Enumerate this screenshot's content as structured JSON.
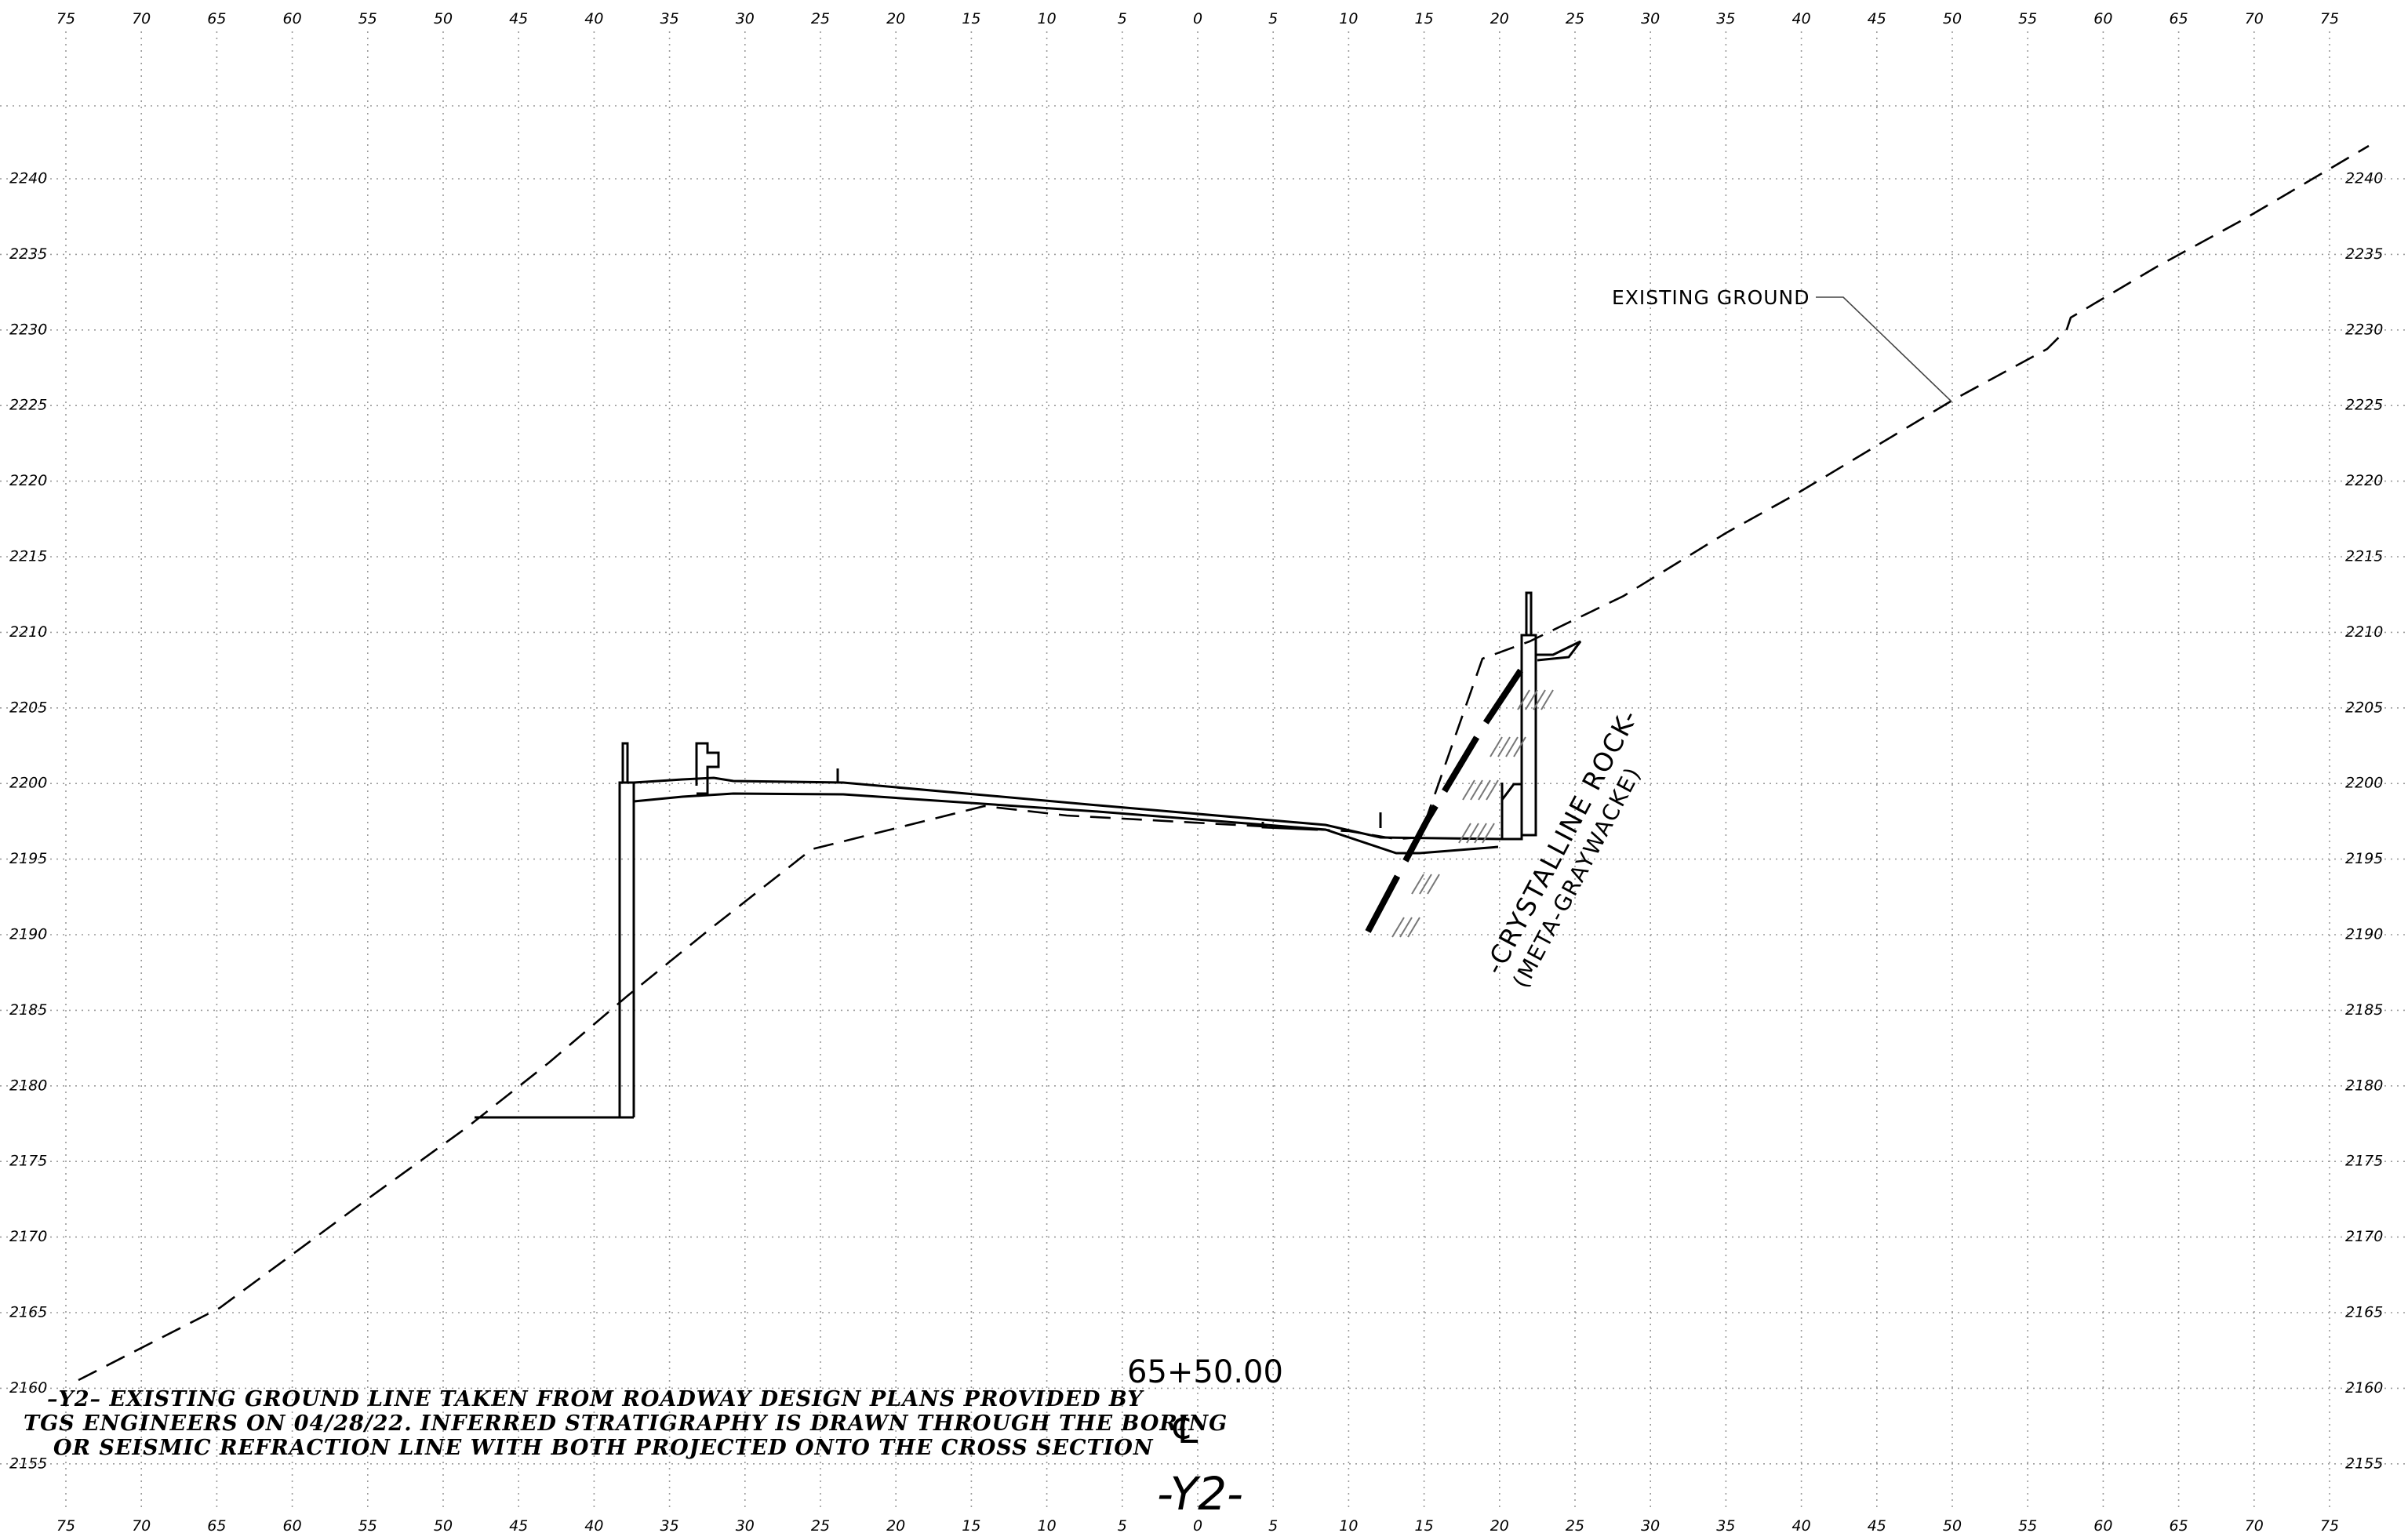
{
  "axes": {
    "offset_labels": [
      "75",
      "70",
      "65",
      "60",
      "55",
      "50",
      "45",
      "40",
      "35",
      "30",
      "25",
      "20",
      "15",
      "10",
      "5",
      "0",
      "5",
      "10",
      "15",
      "20",
      "25",
      "30",
      "35",
      "40",
      "45",
      "50",
      "55",
      "60",
      "65",
      "70",
      "75"
    ],
    "elevation_labels": [
      "2240",
      "2235",
      "2230",
      "2225",
      "2220",
      "2215",
      "2210",
      "2205",
      "2200",
      "2195",
      "2190",
      "2185",
      "2180",
      "2175",
      "2170",
      "2165",
      "2160",
      "2155"
    ]
  },
  "labels": {
    "existing_ground": "EXISTING  GROUND",
    "rock_main": "-CRYSTALLINE ROCK-",
    "rock_sub": "(META-GRAYWACKE)",
    "station": "65+50.00",
    "centerline": "℄",
    "alignment": "-Y2-"
  },
  "note": {
    "line1": "–Y2– EXISTING  GROUND  LINE  TAKEN  FROM  ROADWAY  DESIGN  PLANS  PROVIDED  BY",
    "line2": "TGS  ENGINEERS  ON  04/28/22.  INFERRED  STRATIGRAPHY  IS  DRAWN  THROUGH  THE  BORING",
    "line3": "OR  SEISMIC  REFRACTION  LINE  WITH  BOTH  PROJECTED  ONTO  THE  CROSS  SECTION"
  }
}
